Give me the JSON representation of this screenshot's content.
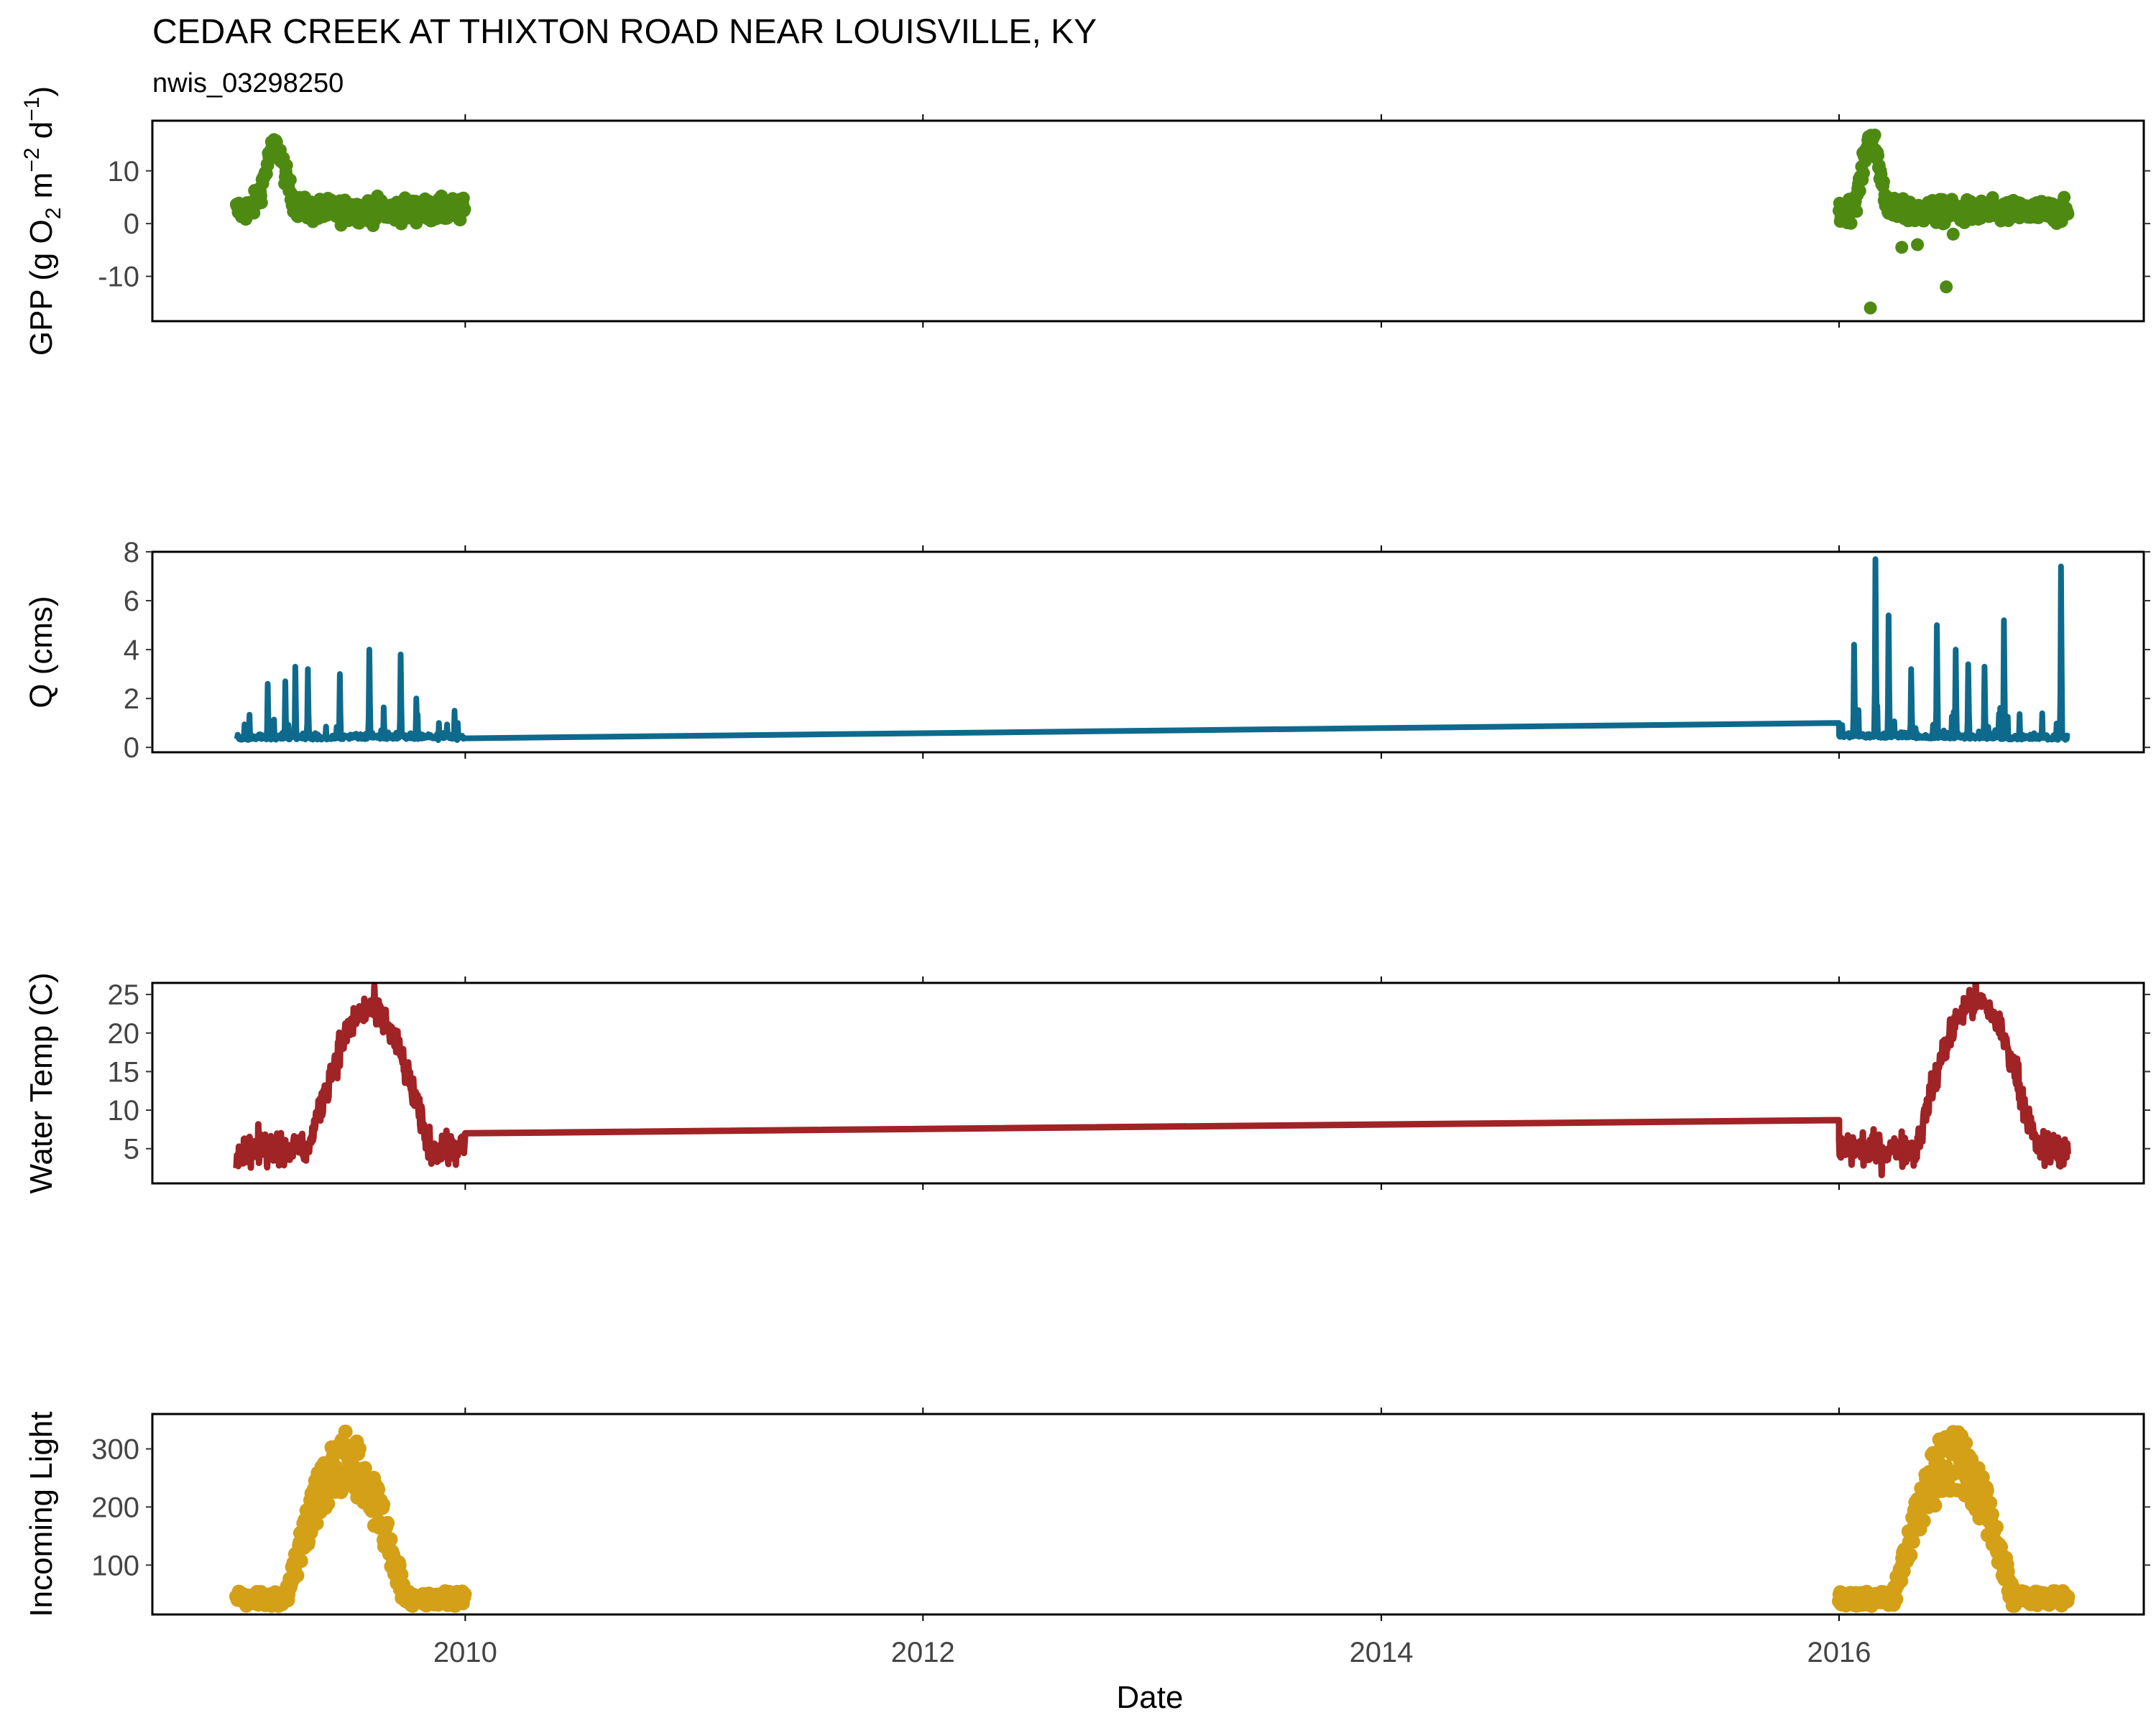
{
  "header": {
    "title": "CEDAR CREEK AT THIXTON ROAD NEAR LOUISVILLE, KY",
    "subtitle": "nwis_03298250"
  },
  "chart_data": [
    {
      "id": "gpp",
      "type": "scatter",
      "ylabel": "GPP (g  O2 m-2 d-1)",
      "ylabel_parts": {
        "a": "GPP (g  O",
        "sub": "2",
        "b": " m",
        "sup1": "−2",
        "c": " d",
        "sup2": "−1",
        "d": ")"
      },
      "ylim": [
        -18.5,
        19.5
      ],
      "yticks": [
        -10,
        0,
        10
      ],
      "ytick_labels": [
        "-10",
        "0",
        "10"
      ],
      "color": "#4e8a12",
      "segments": [
        {
          "start": "2009-01-01",
          "end": "2009-12-31",
          "base": 2.5,
          "peak": 12,
          "peak_center": 0.17,
          "peak_width": 0.06,
          "noise": 2.5
        },
        {
          "start": "2016-01-01",
          "end": "2016-12-31",
          "base": 2.2,
          "peak": 14,
          "peak_center": 0.14,
          "peak_width": 0.05,
          "noise": 2.5
        }
      ],
      "outliers": [
        {
          "date": "2016-02-20",
          "y": -16
        },
        {
          "date": "2016-06-20",
          "y": -12
        },
        {
          "date": "2016-04-10",
          "y": -4.5
        },
        {
          "date": "2016-05-05",
          "y": -4
        },
        {
          "date": "2016-07-01",
          "y": -2
        }
      ]
    },
    {
      "id": "q",
      "type": "line",
      "ylabel": "Q (cms)",
      "ylim": [
        -0.2,
        8.0
      ],
      "yticks": [
        0,
        2,
        4,
        6,
        8
      ],
      "ytick_labels": [
        "0",
        "2",
        "4",
        "6",
        "8"
      ],
      "color": "#0e6a8c",
      "baseline": [
        {
          "date": "2009-01-01",
          "y": 0.3
        },
        {
          "date": "2010-01-01",
          "y": 0.45
        },
        {
          "date": "2016-01-01",
          "y": 1.0
        },
        {
          "date": "2016-12-31",
          "y": 0.5
        }
      ],
      "peaks": [
        {
          "date": "2009-02-20",
          "y": 2.6
        },
        {
          "date": "2009-03-20",
          "y": 2.7
        },
        {
          "date": "2009-04-05",
          "y": 3.3
        },
        {
          "date": "2009-04-25",
          "y": 3.2
        },
        {
          "date": "2009-06-15",
          "y": 3.0
        },
        {
          "date": "2009-08-01",
          "y": 4.0
        },
        {
          "date": "2009-09-20",
          "y": 3.8
        },
        {
          "date": "2009-10-15",
          "y": 2.0
        },
        {
          "date": "2009-11-20",
          "y": 1.0
        },
        {
          "date": "2009-12-20",
          "y": 1.0
        },
        {
          "date": "2016-01-25",
          "y": 4.2
        },
        {
          "date": "2016-02-28",
          "y": 7.7
        },
        {
          "date": "2016-03-20",
          "y": 5.4
        },
        {
          "date": "2016-04-25",
          "y": 3.2
        },
        {
          "date": "2016-06-05",
          "y": 5.0
        },
        {
          "date": "2016-07-05",
          "y": 4.0
        },
        {
          "date": "2016-07-25",
          "y": 3.4
        },
        {
          "date": "2016-08-20",
          "y": 3.3
        },
        {
          "date": "2016-09-20",
          "y": 5.2
        },
        {
          "date": "2016-12-20",
          "y": 7.4
        }
      ]
    },
    {
      "id": "temp",
      "type": "line",
      "ylabel": "Water Temp (C)",
      "ylim": [
        0.5,
        26.5
      ],
      "yticks": [
        5,
        10,
        15,
        20,
        25
      ],
      "ytick_labels": [
        "5",
        "10",
        "15",
        "20",
        "25"
      ],
      "color": "#a02326",
      "segments": [
        {
          "start": "2009-01-01",
          "end": "2009-12-31",
          "low": 3,
          "high": 23,
          "peak_center": 0.58,
          "noise": 2.2
        },
        {
          "start": "2016-01-01",
          "end": "2016-12-31",
          "low": 3,
          "high": 24,
          "peak_center": 0.6,
          "noise": 2.2
        }
      ],
      "connector": [
        {
          "date": "2010-01-01",
          "y": 7.0
        },
        {
          "date": "2016-01-01",
          "y": 8.7
        }
      ]
    },
    {
      "id": "light",
      "type": "scatter",
      "ylabel": "Incoming Light",
      "ylim": [
        15,
        360
      ],
      "yticks": [
        100,
        200,
        300
      ],
      "ytick_labels": [
        "100",
        "200",
        "300"
      ],
      "color": "#d4a017",
      "segments": [
        {
          "start": "2009-01-01",
          "end": "2009-12-31",
          "low": 55,
          "high": 330,
          "peak_center": 0.48,
          "spread": 110
        },
        {
          "start": "2016-01-01",
          "end": "2016-12-31",
          "low": 55,
          "high": 335,
          "peak_center": 0.5,
          "spread": 110
        }
      ]
    }
  ],
  "xaxis": {
    "label": "Date",
    "range": [
      "2008-08-20",
      "2017-05-01"
    ],
    "ticks": [
      "2010-01-01",
      "2012-01-01",
      "2014-01-01",
      "2016-01-01"
    ],
    "tick_labels": [
      "2010",
      "2012",
      "2014",
      "2016"
    ]
  }
}
